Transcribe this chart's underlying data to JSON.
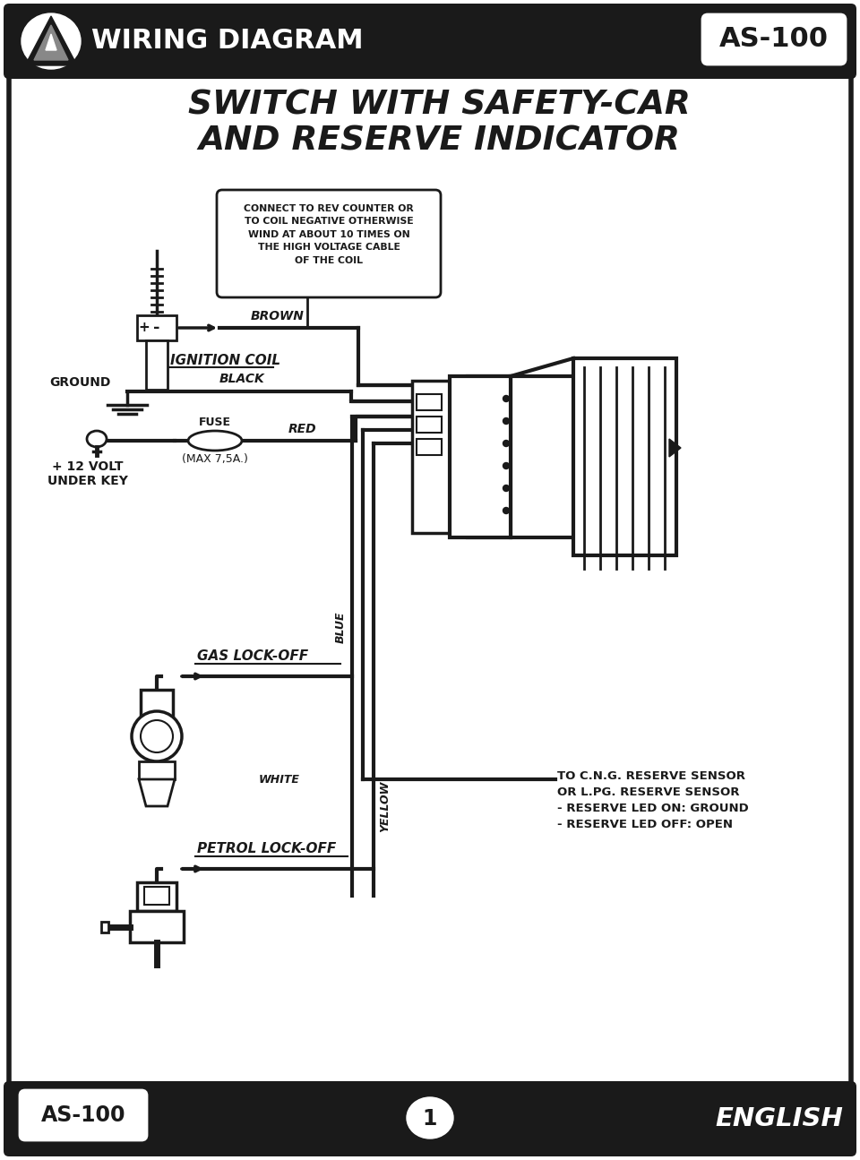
{
  "bg_color": "#ffffff",
  "border_color": "#1a1a1a",
  "header_bg": "#1a1a1a",
  "title_line1": "SWITCH WITH SAFETY-CAR",
  "title_line2": "AND RESERVE INDICATOR",
  "header_left": "WIRING DIAGRAM",
  "header_right": "AS-100",
  "footer_left": "AS-100",
  "footer_center": "1",
  "footer_right": "ENGLISH",
  "coil_box_text": "CONNECT TO REV COUNTER OR\nTO COIL NEGATIVE OTHERWISE\nWIND AT ABOUT 10 TIMES ON\nTHE HIGH VOLTAGE CABLE\nOF THE COIL",
  "brown_label": "BROWN",
  "ignition_label": "IGNITION COIL",
  "ground_label": "GROUND",
  "black_label": "BLACK",
  "fuse_label": "FUSE",
  "fuse_sub": "(MAX 7,5A.)",
  "red_label": "RED",
  "volt_label": "+ 12 VOLT\nUNDER KEY",
  "blue_label": "BLUE",
  "gas_label": "GAS LOCK-OFF",
  "white_label": "WHITE",
  "cng_label": "TO C.N.G. RESERVE SENSOR\nOR L.PG. RESERVE SENSOR\n- RESERVE LED ON: GROUND\n- RESERVE LED OFF: OPEN",
  "yellow_label": "YELLOW",
  "petrol_label": "PETROL LOCK-OFF"
}
